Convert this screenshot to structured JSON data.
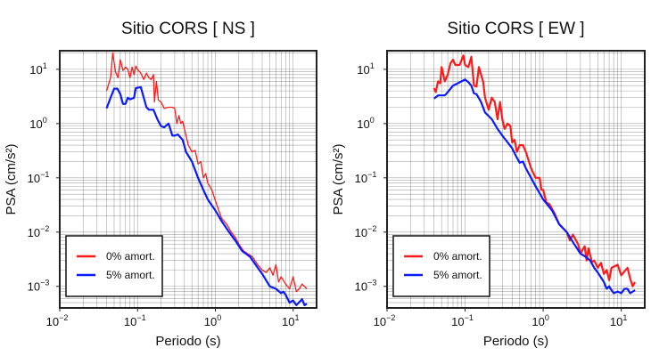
{
  "chart_data": [
    {
      "type": "line",
      "title": "Sitio CORS [ NS ]",
      "xlabel": "Periodo (s)",
      "ylabel": "PSA (cm/s²)",
      "xscale": "log",
      "yscale": "log",
      "xlim": [
        0.01,
        20
      ],
      "ylim": [
        0.0004,
        22
      ],
      "x_ticks": [
        {
          "base": "10",
          "exp": "−2"
        },
        {
          "base": "10",
          "exp": "−1"
        },
        {
          "base": "10",
          "exp": "0"
        },
        {
          "base": "10",
          "exp": "1"
        }
      ],
      "y_ticks": [
        {
          "base": "10",
          "exp": "1"
        },
        {
          "base": "10",
          "exp": "0"
        },
        {
          "base": "10",
          "exp": "−1"
        },
        {
          "base": "10",
          "exp": "−2"
        },
        {
          "base": "10",
          "exp": "−3"
        }
      ],
      "grid": true,
      "legend_placement": "bottom-left",
      "series": [
        {
          "name": "0% amort.",
          "color": "#ff1a1a",
          "points": [
            [
              0.04,
              4
            ],
            [
              0.045,
              7
            ],
            [
              0.048,
              20
            ],
            [
              0.052,
              9
            ],
            [
              0.056,
              7
            ],
            [
              0.06,
              15
            ],
            [
              0.065,
              9.5
            ],
            [
              0.07,
              11
            ],
            [
              0.075,
              10
            ],
            [
              0.08,
              7
            ],
            [
              0.085,
              11
            ],
            [
              0.09,
              8
            ],
            [
              0.095,
              11.5
            ],
            [
              0.1,
              10
            ],
            [
              0.11,
              8.5
            ],
            [
              0.12,
              6.5
            ],
            [
              0.13,
              8.5
            ],
            [
              0.14,
              7
            ],
            [
              0.15,
              6.5
            ],
            [
              0.16,
              8
            ],
            [
              0.165,
              2.5
            ],
            [
              0.175,
              6
            ],
            [
              0.185,
              2.7
            ],
            [
              0.2,
              2.5
            ],
            [
              0.22,
              1.9
            ],
            [
              0.25,
              2
            ],
            [
              0.28,
              2
            ],
            [
              0.3,
              1.9
            ],
            [
              0.32,
              1.0
            ],
            [
              0.34,
              1.4
            ],
            [
              0.36,
              1.0
            ],
            [
              0.38,
              1.1
            ],
            [
              0.4,
              0.8
            ],
            [
              0.45,
              0.4
            ],
            [
              0.5,
              0.3
            ],
            [
              0.55,
              0.32
            ],
            [
              0.6,
              0.18
            ],
            [
              0.65,
              0.2
            ],
            [
              0.7,
              0.1
            ],
            [
              0.75,
              0.12
            ],
            [
              0.8,
              0.08
            ],
            [
              0.9,
              0.06
            ],
            [
              1.0,
              0.038
            ],
            [
              1.2,
              0.018
            ],
            [
              1.4,
              0.014
            ],
            [
              1.6,
              0.01
            ],
            [
              1.8,
              0.008
            ],
            [
              2.0,
              0.006
            ],
            [
              2.3,
              0.0045
            ],
            [
              2.6,
              0.004
            ],
            [
              3.0,
              0.0035
            ],
            [
              3.5,
              0.0025
            ],
            [
              4.0,
              0.002
            ],
            [
              4.5,
              0.0018
            ],
            [
              5,
              0.0022
            ],
            [
              5.5,
              0.0016
            ],
            [
              6,
              0.0025
            ],
            [
              6.5,
              0.0012
            ],
            [
              7,
              0.0015
            ],
            [
              8,
              0.0011
            ],
            [
              9,
              0.0009
            ],
            [
              10,
              0.0015
            ],
            [
              11,
              0.0008
            ],
            [
              12,
              0.0009
            ],
            [
              13,
              0.0011
            ],
            [
              15,
              0.0009
            ]
          ]
        },
        {
          "name": "5% amort.",
          "color": "#0a1aff",
          "points": [
            [
              0.04,
              1.9
            ],
            [
              0.045,
              3
            ],
            [
              0.05,
              4.4
            ],
            [
              0.055,
              4.4
            ],
            [
              0.06,
              3.5
            ],
            [
              0.065,
              2.3
            ],
            [
              0.07,
              2.3
            ],
            [
              0.075,
              3
            ],
            [
              0.08,
              2.8
            ],
            [
              0.09,
              3
            ],
            [
              0.095,
              4.5
            ],
            [
              0.11,
              4.7
            ],
            [
              0.12,
              3
            ],
            [
              0.13,
              2
            ],
            [
              0.14,
              1.8
            ],
            [
              0.16,
              1.8
            ],
            [
              0.18,
              1.2
            ],
            [
              0.2,
              0.9
            ],
            [
              0.22,
              0.85
            ],
            [
              0.25,
              1.0
            ],
            [
              0.28,
              0.6
            ],
            [
              0.3,
              0.6
            ],
            [
              0.33,
              0.63
            ],
            [
              0.38,
              0.5
            ],
            [
              0.42,
              0.3
            ],
            [
              0.5,
              0.2
            ],
            [
              0.6,
              0.1
            ],
            [
              0.7,
              0.06
            ],
            [
              0.8,
              0.04
            ],
            [
              1.0,
              0.025
            ],
            [
              1.2,
              0.016
            ],
            [
              1.5,
              0.01
            ],
            [
              1.8,
              0.007
            ],
            [
              2.2,
              0.0045
            ],
            [
              2.8,
              0.0035
            ],
            [
              3.5,
              0.0022
            ],
            [
              4,
              0.0017
            ],
            [
              5,
              0.001
            ],
            [
              6,
              0.0009
            ],
            [
              7,
              0.00075
            ],
            [
              7.5,
              0.0008
            ],
            [
              8,
              0.0007
            ],
            [
              9,
              0.0005
            ],
            [
              10,
              0.00055
            ],
            [
              11,
              0.00045
            ],
            [
              13,
              0.00058
            ],
            [
              14,
              0.00045
            ],
            [
              15,
              0.00048
            ]
          ]
        }
      ]
    },
    {
      "type": "line",
      "title": "Sitio CORS [ EW ]",
      "xlabel": "Periodo (s)",
      "ylabel": "PSA (cm/s²)",
      "xscale": "log",
      "yscale": "log",
      "xlim": [
        0.01,
        20
      ],
      "ylim": [
        0.0004,
        22
      ],
      "x_ticks": [
        {
          "base": "10",
          "exp": "−2"
        },
        {
          "base": "10",
          "exp": "−1"
        },
        {
          "base": "10",
          "exp": "0"
        },
        {
          "base": "10",
          "exp": "1"
        }
      ],
      "y_ticks": [
        {
          "base": "10",
          "exp": "1"
        },
        {
          "base": "10",
          "exp": "0"
        },
        {
          "base": "10",
          "exp": "−1"
        },
        {
          "base": "10",
          "exp": "−2"
        },
        {
          "base": "10",
          "exp": "−3"
        }
      ],
      "grid": true,
      "legend_placement": "bottom-left",
      "series": [
        {
          "name": "0% amort.",
          "color": "#ff1a1a",
          "points": [
            [
              0.04,
              4.5
            ],
            [
              0.042,
              3.8
            ],
            [
              0.045,
              6
            ],
            [
              0.048,
              5.5
            ],
            [
              0.05,
              11
            ],
            [
              0.055,
              6
            ],
            [
              0.06,
              8
            ],
            [
              0.065,
              13
            ],
            [
              0.07,
              15
            ],
            [
              0.075,
              12
            ],
            [
              0.085,
              12
            ],
            [
              0.095,
              18
            ],
            [
              0.1,
              12
            ],
            [
              0.11,
              11
            ],
            [
              0.12,
              17
            ],
            [
              0.13,
              5
            ],
            [
              0.14,
              4.8
            ],
            [
              0.15,
              11
            ],
            [
              0.17,
              6
            ],
            [
              0.18,
              3
            ],
            [
              0.2,
              1.8
            ],
            [
              0.22,
              3
            ],
            [
              0.24,
              2.5
            ],
            [
              0.26,
              1.2
            ],
            [
              0.28,
              2.5
            ],
            [
              0.3,
              1.2
            ],
            [
              0.32,
              0.8
            ],
            [
              0.35,
              1
            ],
            [
              0.38,
              0.9
            ],
            [
              0.4,
              0.45
            ],
            [
              0.43,
              0.5
            ],
            [
              0.46,
              0.3
            ],
            [
              0.5,
              0.4
            ],
            [
              0.55,
              0.4
            ],
            [
              0.6,
              0.3
            ],
            [
              0.7,
              0.15
            ],
            [
              0.8,
              0.1
            ],
            [
              0.9,
              0.1
            ],
            [
              0.95,
              0.06
            ],
            [
              1.0,
              0.06
            ],
            [
              1.1,
              0.035
            ],
            [
              1.2,
              0.033
            ],
            [
              1.4,
              0.022
            ],
            [
              1.6,
              0.014
            ],
            [
              2.0,
              0.01
            ],
            [
              2.2,
              0.007
            ],
            [
              2.4,
              0.009
            ],
            [
              2.8,
              0.006
            ],
            [
              3.0,
              0.004
            ],
            [
              3.4,
              0.0055
            ],
            [
              3.6,
              0.003
            ],
            [
              3.8,
              0.005
            ],
            [
              4.2,
              0.0028
            ],
            [
              4.5,
              0.003
            ],
            [
              5,
              0.0022
            ],
            [
              5.5,
              0.0027
            ],
            [
              6,
              0.0017
            ],
            [
              6.5,
              0.002
            ],
            [
              7,
              0.0013
            ],
            [
              7.5,
              0.0022
            ],
            [
              9,
              0.0025
            ],
            [
              10,
              0.0016
            ],
            [
              12,
              0.0022
            ],
            [
              13,
              0.0014
            ],
            [
              14,
              0.001
            ],
            [
              15,
              0.0012
            ]
          ]
        },
        {
          "name": "5% amort.",
          "color": "#0a1aff",
          "points": [
            [
              0.04,
              2.9
            ],
            [
              0.045,
              3.3
            ],
            [
              0.055,
              3.3
            ],
            [
              0.06,
              3.8
            ],
            [
              0.07,
              5
            ],
            [
              0.08,
              5.5
            ],
            [
              0.09,
              6
            ],
            [
              0.1,
              6.5
            ],
            [
              0.11,
              5.8
            ],
            [
              0.12,
              5
            ],
            [
              0.13,
              3.6
            ],
            [
              0.14,
              3.5
            ],
            [
              0.16,
              2.5
            ],
            [
              0.18,
              1.6
            ],
            [
              0.22,
              1.2
            ],
            [
              0.26,
              0.8
            ],
            [
              0.3,
              0.6
            ],
            [
              0.35,
              0.45
            ],
            [
              0.4,
              0.35
            ],
            [
              0.45,
              0.25
            ],
            [
              0.5,
              0.19
            ],
            [
              0.55,
              0.2
            ],
            [
              0.6,
              0.15
            ],
            [
              0.7,
              0.1
            ],
            [
              0.8,
              0.07
            ],
            [
              1.0,
              0.04
            ],
            [
              1.3,
              0.025
            ],
            [
              1.6,
              0.014
            ],
            [
              2.0,
              0.01
            ],
            [
              2.5,
              0.006
            ],
            [
              3.0,
              0.004
            ],
            [
              3.5,
              0.0035
            ],
            [
              4,
              0.003
            ],
            [
              4.5,
              0.0022
            ],
            [
              5,
              0.0018
            ],
            [
              6,
              0.0012
            ],
            [
              6.5,
              0.0009
            ],
            [
              7,
              0.001
            ],
            [
              7.5,
              0.00085
            ],
            [
              8,
              0.00075
            ],
            [
              9,
              0.0008
            ],
            [
              10,
              0.00075
            ],
            [
              11,
              0.0009
            ],
            [
              12,
              0.0009
            ],
            [
              13,
              0.00075
            ],
            [
              15,
              0.00085
            ]
          ]
        }
      ]
    }
  ]
}
